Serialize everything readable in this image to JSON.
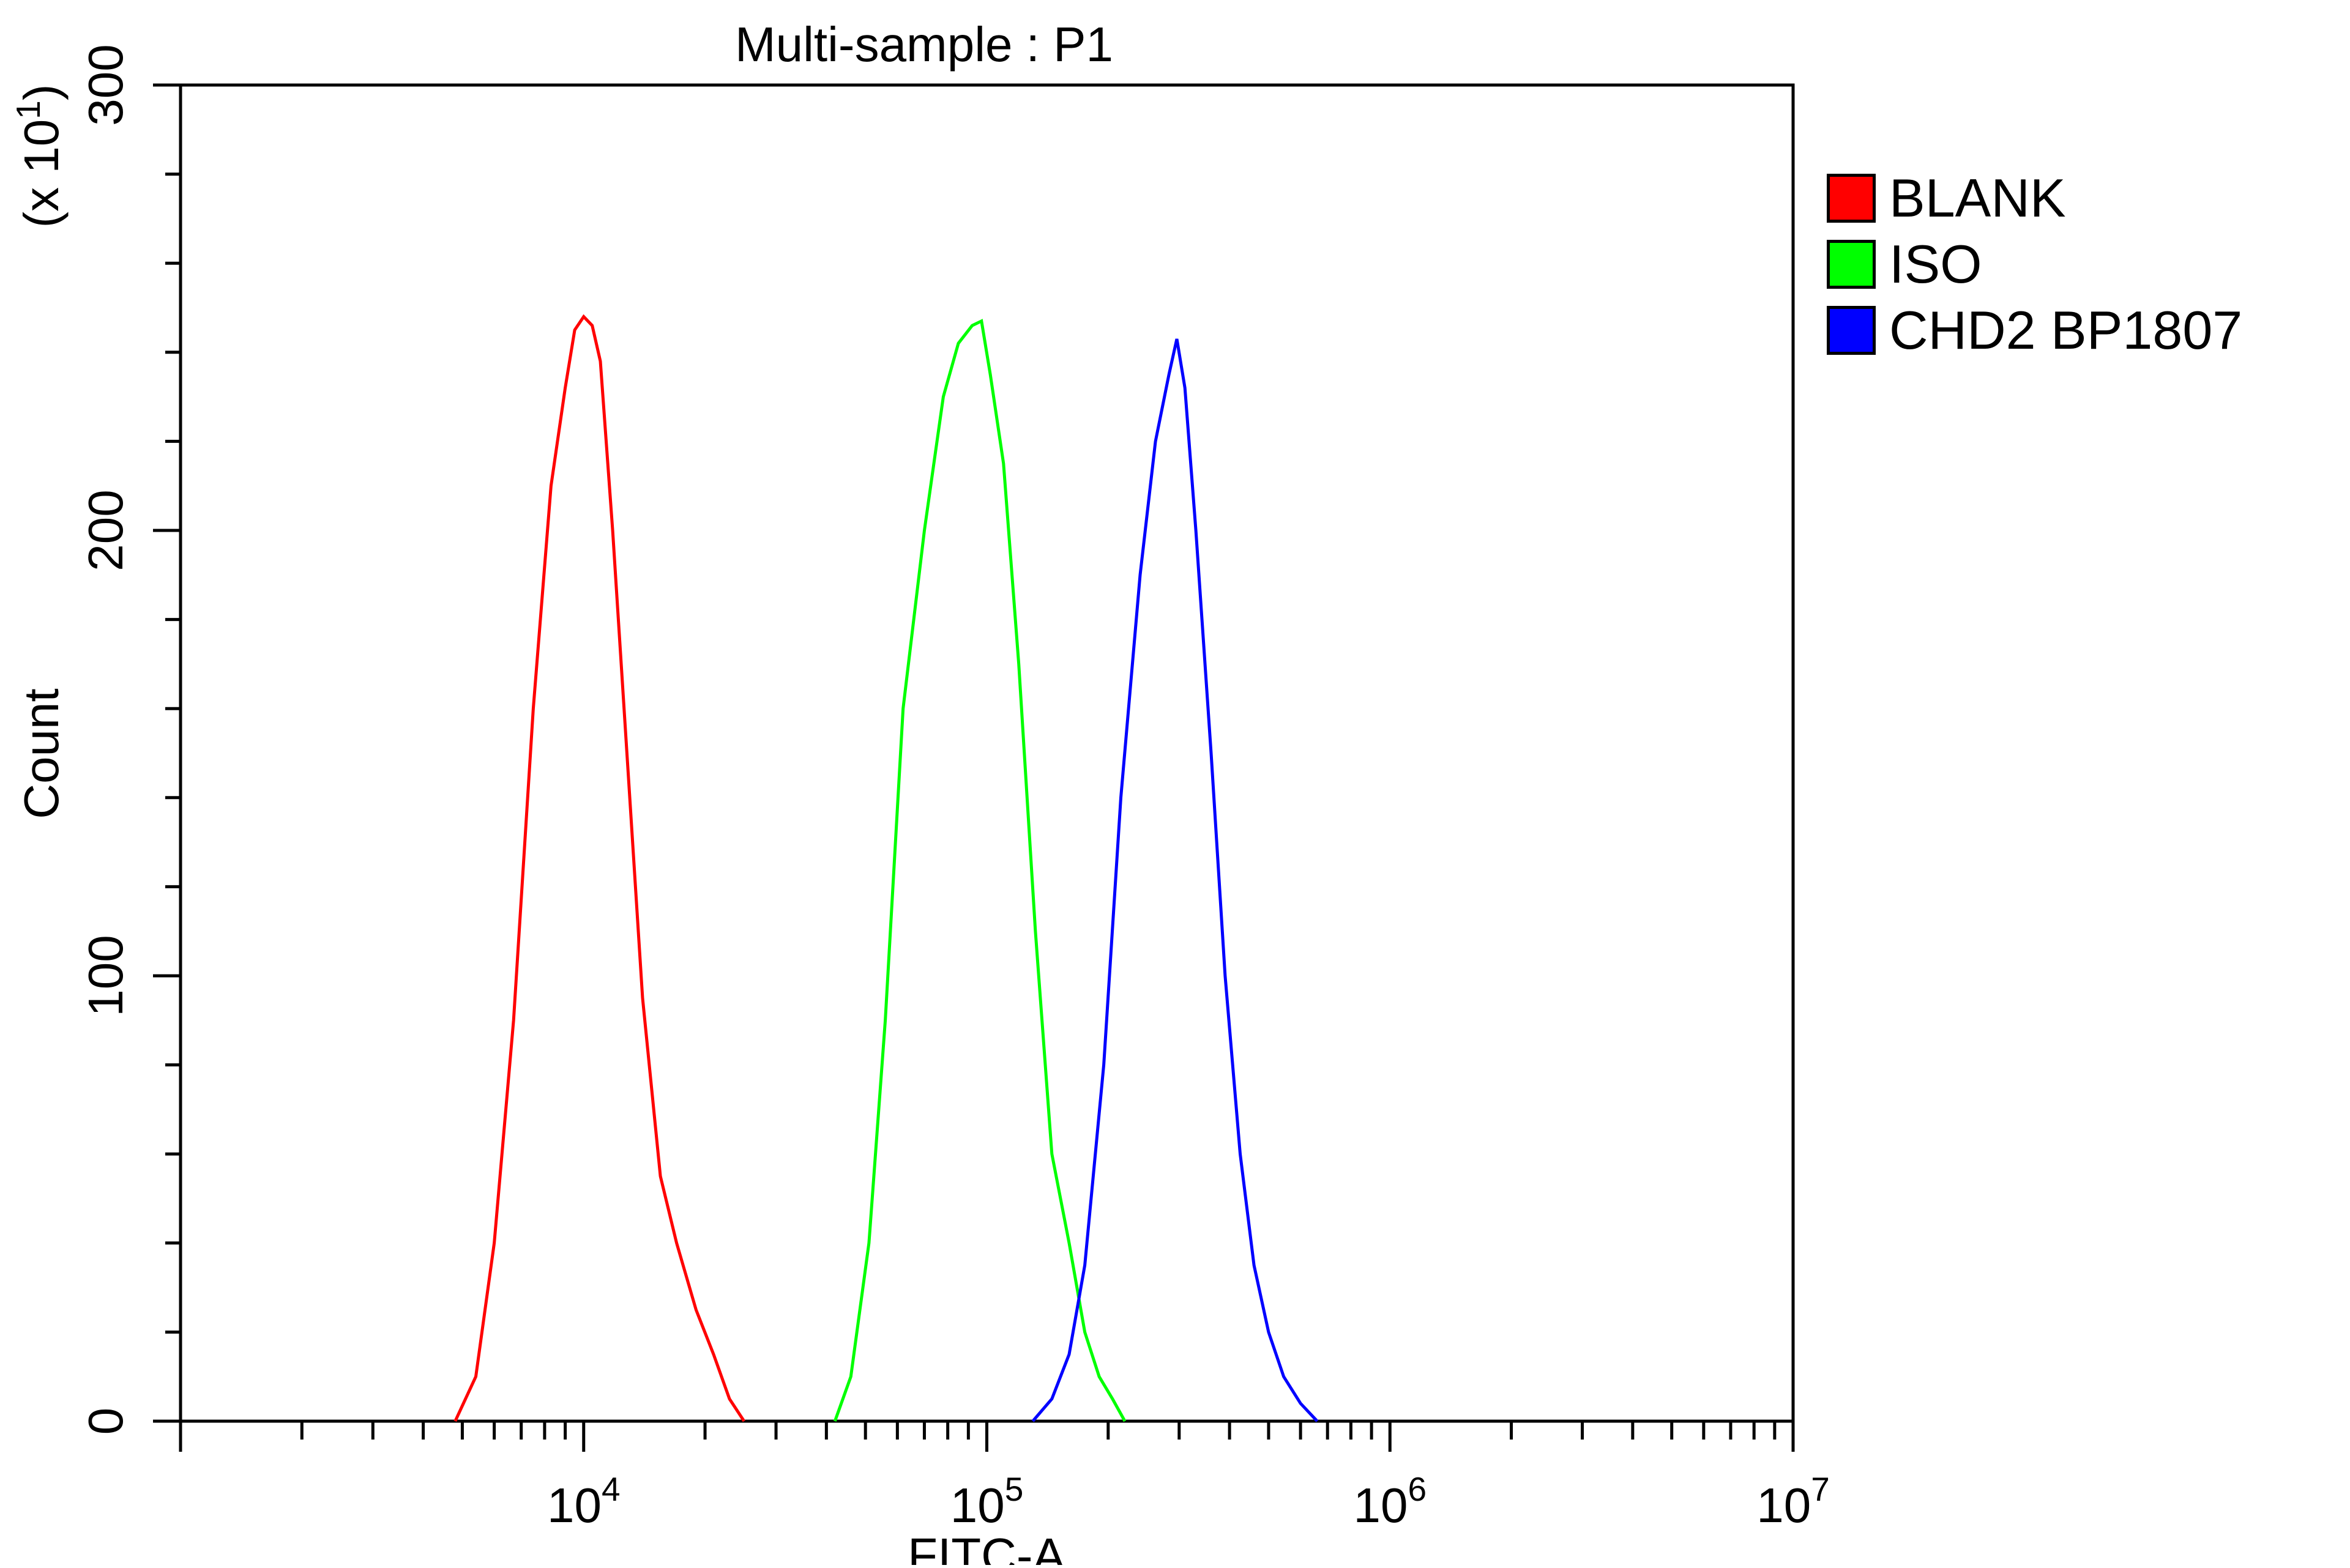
{
  "chart_data": {
    "type": "line",
    "title": "Multi-sample : P1",
    "xlabel": "FITC-A",
    "ylabel": "Count",
    "y_multiplier_label": "(x 10",
    "y_multiplier_exp": "1",
    "x_scale": "log",
    "xlim": [
      1000,
      10000000
    ],
    "ylim": [
      0,
      300
    ],
    "x_ticks": [
      {
        "value": 10000,
        "base": "10",
        "exp": "4"
      },
      {
        "value": 100000,
        "base": "10",
        "exp": "5"
      },
      {
        "value": 1000000,
        "base": "10",
        "exp": "6"
      },
      {
        "value": 10000000,
        "base": "10",
        "exp": "7"
      }
    ],
    "y_ticks": [
      {
        "value": 0,
        "label": "0"
      },
      {
        "value": 100,
        "label": "100"
      },
      {
        "value": 200,
        "label": "200"
      },
      {
        "value": 300,
        "label": "300"
      }
    ],
    "grid": false,
    "legend_position": "right",
    "series": [
      {
        "name": "BLANK",
        "color": "#ff0000",
        "x": [
          4800,
          5400,
          6000,
          6700,
          7500,
          8300,
          9000,
          9500,
          10000,
          10500,
          11000,
          11800,
          12800,
          14000,
          15500,
          17000,
          19000,
          21000,
          23000,
          25000
        ],
        "y": [
          0,
          10,
          40,
          90,
          160,
          210,
          232,
          245,
          248,
          246,
          238,
          200,
          150,
          95,
          55,
          40,
          25,
          15,
          5,
          0
        ]
      },
      {
        "name": "ISO",
        "color": "#00ff00",
        "x": [
          42000,
          46000,
          51000,
          56000,
          62000,
          70000,
          78000,
          85000,
          92000,
          97000,
          102000,
          110000,
          120000,
          132000,
          145000,
          160000,
          175000,
          190000,
          205000,
          220000
        ],
        "y": [
          0,
          10,
          40,
          90,
          160,
          200,
          230,
          242,
          246,
          247,
          235,
          215,
          170,
          110,
          60,
          40,
          20,
          10,
          5,
          0
        ]
      },
      {
        "name": "CHD2 BP1807",
        "color": "#0000ff",
        "x": [
          130000,
          145000,
          160000,
          175000,
          195000,
          215000,
          240000,
          262000,
          283000,
          296000,
          310000,
          330000,
          360000,
          390000,
          425000,
          460000,
          500000,
          545000,
          600000,
          660000
        ],
        "y": [
          0,
          5,
          15,
          35,
          80,
          140,
          190,
          220,
          235,
          243,
          232,
          200,
          150,
          100,
          60,
          35,
          20,
          10,
          4,
          0
        ]
      }
    ]
  }
}
